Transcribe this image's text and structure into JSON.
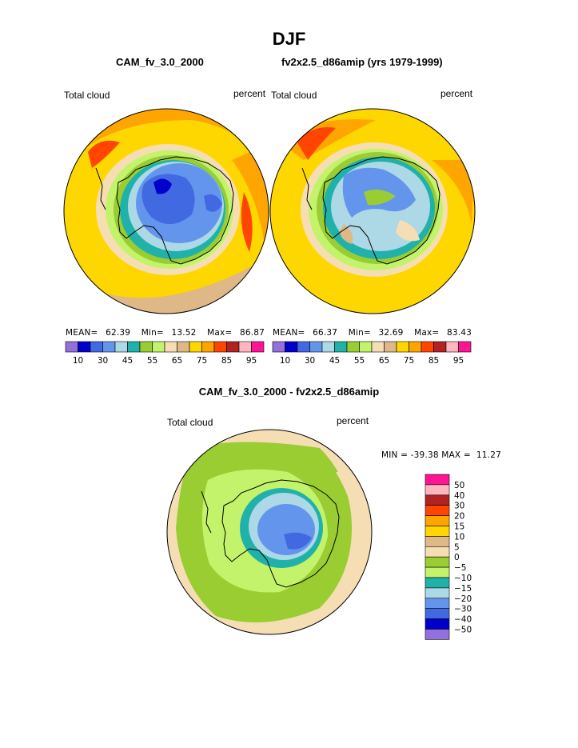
{
  "page_title": "DJF",
  "panels": {
    "left": {
      "subtitle": "CAM_fv_3.0_2000",
      "left_label": "Total cloud",
      "right_label": "percent",
      "stats": {
        "mean_label": "MEAN=",
        "mean": "62.39",
        "min_label": "Min=",
        "min": "13.52",
        "max_label": "Max=",
        "max": "86.87"
      }
    },
    "right": {
      "subtitle": "fv2x2.5_d86amip (yrs 1979-1999)",
      "left_label": "Total cloud",
      "right_label": "percent",
      "stats": {
        "mean_label": "MEAN=",
        "mean": "66.37",
        "min_label": "Min=",
        "min": "32.69",
        "max_label": "Max=",
        "max": "83.43"
      }
    },
    "diff": {
      "subtitle": "CAM_fv_3.0_2000 - fv2x2.5_d86amip",
      "left_label": "Total cloud",
      "right_label": "percent",
      "minmax_text": "MIN = -39.38 MAX =  11.27"
    }
  },
  "colors": {
    "coast": "#000000",
    "abs_levels": [
      "#9370db",
      "#0000cd",
      "#4169e1",
      "#6495ed",
      "#add8e6",
      "#20b2aa",
      "#9acd32",
      "#c3f36b",
      "#f5deb3",
      "#deb887",
      "#ffd700",
      "#ffa500",
      "#ff4500",
      "#b22222",
      "#ffb6c1",
      "#ff1493"
    ],
    "diff_levels": [
      "#9370db",
      "#0000cd",
      "#4169e1",
      "#6495ed",
      "#add8e6",
      "#20b2aa",
      "#c3f36b",
      "#9acd32",
      "#f5deb3",
      "#deb887",
      "#ffd700",
      "#ffa500",
      "#ff4500",
      "#b22222",
      "#ffb6c1",
      "#ff1493"
    ]
  },
  "chart_data": [
    {
      "type": "heatmap",
      "title": "CAM_fv_3.0_2000",
      "variable": "Total cloud",
      "units": "percent",
      "projection": "south polar stereographic",
      "stats": {
        "mean": 62.39,
        "min": 13.52,
        "max": 86.87
      },
      "contour_levels": [
        10,
        15,
        20,
        25,
        30,
        35,
        40,
        45,
        50,
        55,
        60,
        65,
        70,
        75,
        80,
        85,
        90,
        95
      ],
      "colorbar_tick_labels": [
        "10",
        "30",
        "45",
        "55",
        "65",
        "75",
        "85",
        "95"
      ]
    },
    {
      "type": "heatmap",
      "title": "fv2x2.5_d86amip (yrs 1979-1999)",
      "variable": "Total cloud",
      "units": "percent",
      "projection": "south polar stereographic",
      "stats": {
        "mean": 66.37,
        "min": 32.69,
        "max": 83.43
      },
      "contour_levels": [
        10,
        15,
        20,
        25,
        30,
        35,
        40,
        45,
        50,
        55,
        60,
        65,
        70,
        75,
        80,
        85,
        90,
        95
      ],
      "colorbar_tick_labels": [
        "10",
        "30",
        "45",
        "55",
        "65",
        "75",
        "85",
        "95"
      ]
    },
    {
      "type": "heatmap",
      "title": "CAM_fv_3.0_2000 - fv2x2.5_d86amip",
      "variable": "Total cloud",
      "units": "percent",
      "projection": "south polar stereographic",
      "stats": {
        "min": -39.38,
        "max": 11.27
      },
      "contour_levels": [
        -50,
        -40,
        -30,
        -20,
        -15,
        -10,
        -5,
        0,
        5,
        10,
        15,
        20,
        30,
        40,
        50
      ],
      "colorbar_tick_labels": [
        "50",
        "40",
        "30",
        "20",
        "15",
        "10",
        "5",
        "0",
        "−5",
        "−10",
        "−15",
        "−20",
        "−30",
        "−40",
        "−50"
      ]
    }
  ]
}
